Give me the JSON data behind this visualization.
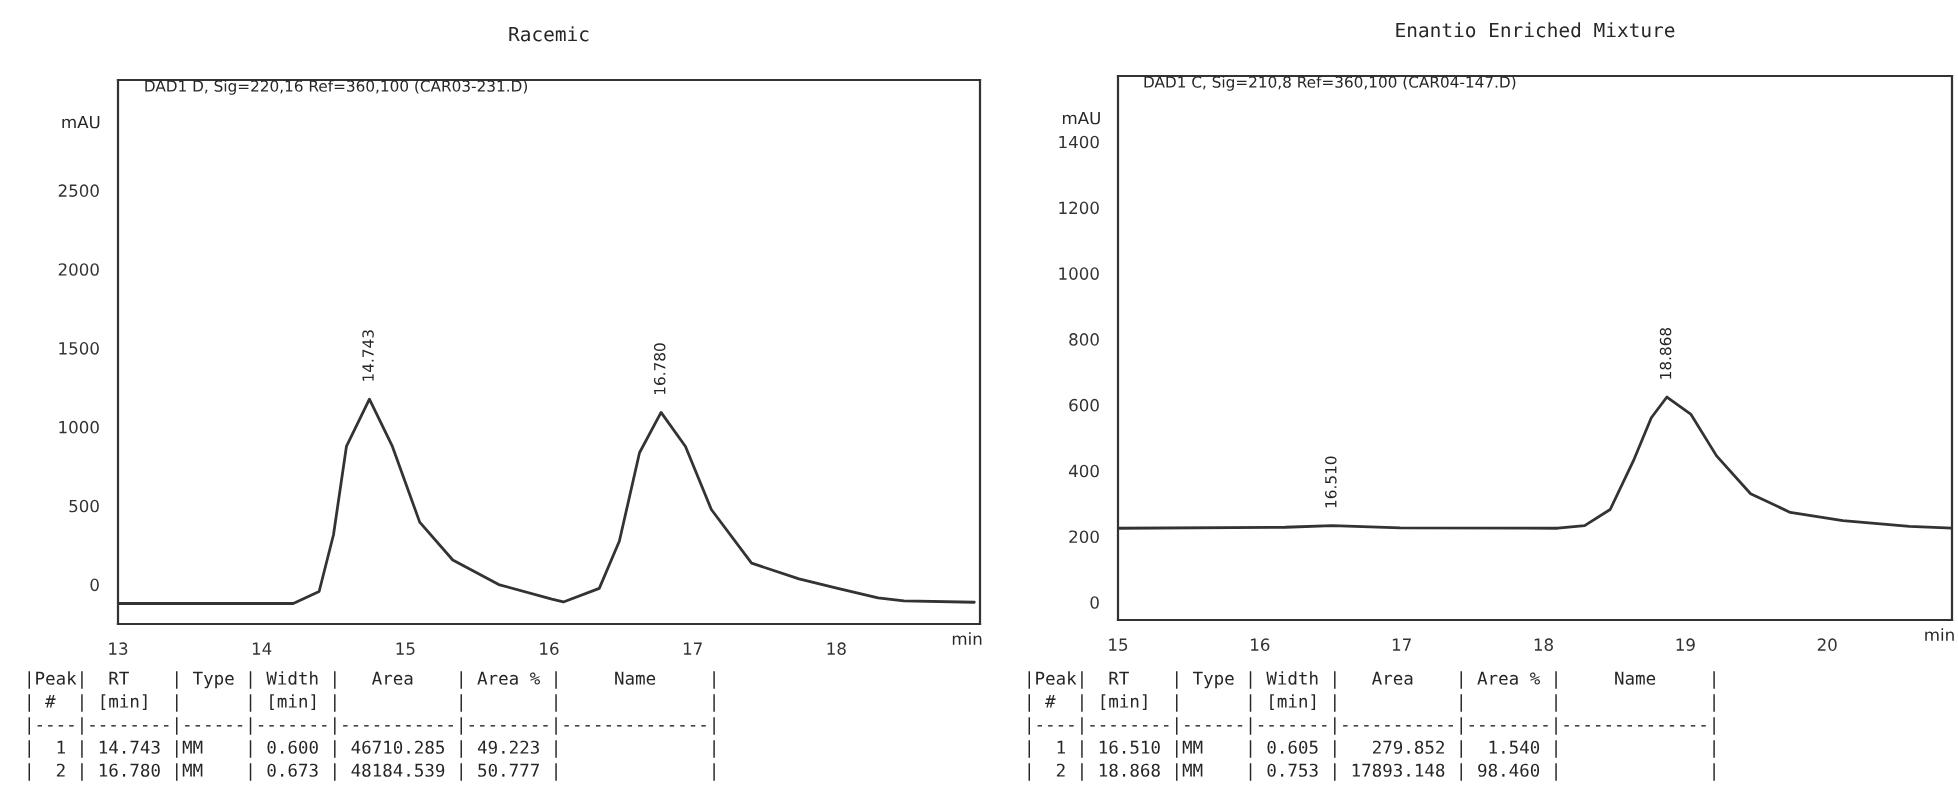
{
  "chart_data": [
    {
      "type": "line",
      "title": "Racemic",
      "subtitle": "DAD1 D, Sig=220,16 Ref=360,100 (CAR03-231.D)",
      "xlabel": "min",
      "ylabel": "mAU",
      "xlim": [
        13,
        19
      ],
      "xticks": [
        13,
        14,
        15,
        16,
        17,
        18
      ],
      "ylim": [
        -250,
        3200
      ],
      "yticks": [
        0,
        500,
        1000,
        1500,
        2000,
        2500
      ],
      "legend": false,
      "grid": false,
      "marker": "none",
      "line_style": "solid",
      "series": [
        {
          "color": "#333333",
          "x": [
            13.0,
            14.22,
            14.4,
            14.5,
            14.59,
            14.75,
            14.91,
            15.1,
            15.33,
            15.65,
            16.02,
            16.1,
            16.35,
            16.49,
            16.63,
            16.78,
            16.95,
            17.13,
            17.41,
            17.74,
            18.01,
            18.29,
            18.47,
            18.96
          ],
          "values": [
            -120,
            -120,
            -44,
            316,
            876,
            1176,
            876,
            396,
            156,
            0,
            -92,
            -110,
            -24,
            276,
            836,
            1092,
            876,
            476,
            136,
            36,
            -24,
            -84,
            -104,
            -112
          ]
        }
      ],
      "annotations": [
        {
          "text": "14.743",
          "x": 14.75,
          "y": 1176
        },
        {
          "text": "16.780",
          "x": 16.78,
          "y": 1092
        },
        "|Peak|  RT    | Type | Width |   Area    | Area % |     Name     |",
        "| #  | [min]  |      | [min] |           |        |              |",
        "|----|--------|------|-------|-----------|--------|--------------|",
        "|  1 | 14.743 |MM    | 0.600 | 46710.285 | 49.223 |              |",
        "|  2 | 16.780 |MM    | 0.673 | 48184.539 | 50.777 |              |"
      ]
    },
    {
      "type": "line",
      "title": "Enantio Enriched Mixture",
      "subtitle": "DAD1 C, Sig=210,8 Ref=360,100 (CAR04-147.D)",
      "xlabel": "min",
      "ylabel": "mAU",
      "xlim": [
        15,
        20.88
      ],
      "xticks": [
        15,
        16,
        17,
        18,
        19,
        20
      ],
      "ylim": [
        -54,
        1600
      ],
      "yticks": [
        0,
        200,
        400,
        600,
        800,
        1000,
        1200,
        1400
      ],
      "legend": false,
      "grid": false,
      "marker": "none",
      "line_style": "solid",
      "series": [
        {
          "color": "#333333",
          "x": [
            15.0,
            16.18,
            16.51,
            16.99,
            18.1,
            18.29,
            18.47,
            18.64,
            18.76,
            18.87,
            19.04,
            19.22,
            19.46,
            19.74,
            20.11,
            20.58,
            20.88
          ],
          "values": [
            225,
            228,
            233,
            226,
            225,
            233,
            282,
            436,
            561,
            624,
            571,
            445,
            330,
            273,
            248,
            231,
            225
          ]
        }
      ],
      "annotations": [
        {
          "text": "16.510",
          "x": 16.51,
          "y": 233
        },
        {
          "text": "18.868",
          "x": 18.87,
          "y": 624
        },
        "|Peak|  RT    | Type | Width |   Area    | Area % |     Name     |",
        "| #  | [min]  |      | [min] |           |        |              |",
        "|----|--------|------|-------|-----------|--------|--------------|",
        "|  1 | 16.510 |MM    | 0.605 |   279.852 |  1.540 |              |",
        "|  2 | 18.868 |MM    | 0.753 | 17893.148 | 98.460 |              |"
      ]
    }
  ]
}
